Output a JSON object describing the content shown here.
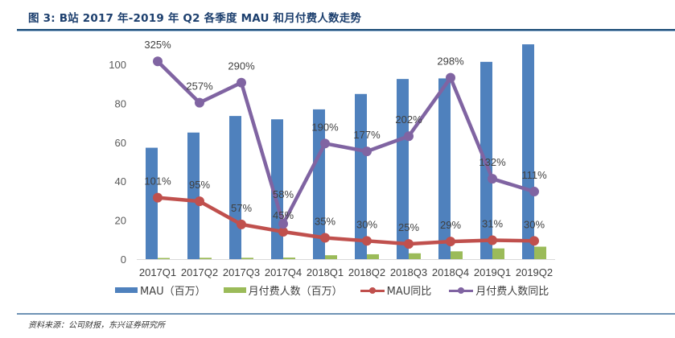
{
  "figure": {
    "title": "图 3: B站 2017 年-2019 年 Q2 各季度 MAU 和月付费人数走势",
    "source": "资料来源：公司财报，东兴证券研究所"
  },
  "colors": {
    "mau": "#4f81bd",
    "paying": "#9bbb59",
    "mau_yoy": "#c0504d",
    "paying_yoy": "#8064a2",
    "axis": "#d9d9d9",
    "rule": "#1f4e79"
  },
  "legend": [
    {
      "label": "MAU（百万）",
      "kind": "bar",
      "color_key": "mau"
    },
    {
      "label": "月付费人数（百万）",
      "kind": "bar",
      "color_key": "paying"
    },
    {
      "label": "MAU同比",
      "kind": "line",
      "color_key": "mau_yoy"
    },
    {
      "label": "月付费人数同比",
      "kind": "line",
      "color_key": "paying_yoy"
    }
  ],
  "chart_data": {
    "type": "bar",
    "title": "B站 2017 年-2019 年 Q2 各季度 MAU 和月付费人数走势",
    "xlabel": "",
    "ylabel": "",
    "ylim": [
      0,
      110
    ],
    "yticks": [
      0,
      20,
      40,
      60,
      80,
      100
    ],
    "grid": false,
    "legend_position": "bottom",
    "categories": [
      "2017Q1",
      "2017Q2",
      "2017Q3",
      "2017Q4",
      "2018Q1",
      "2018Q2",
      "2018Q3",
      "2018Q4",
      "2019Q1",
      "2019Q2"
    ],
    "series": [
      {
        "name": "MAU（百万）",
        "type": "bar",
        "values": [
          57.2,
          65.0,
          73.5,
          71.8,
          76.9,
          84.8,
          92.5,
          92.8,
          101.3,
          110.3
        ]
      },
      {
        "name": "月付费人数（百万）",
        "type": "bar",
        "values": [
          0.6,
          0.7,
          0.7,
          0.8,
          2.0,
          2.5,
          3.0,
          4.0,
          5.5,
          6.4
        ]
      },
      {
        "name": "MAU同比",
        "type": "line",
        "values": [
          101,
          95,
          57,
          45,
          35,
          30,
          25,
          29,
          31,
          30
        ],
        "labels": [
          "101%",
          "95%",
          "57%",
          "45%",
          "35%",
          "30%",
          "25%",
          "29%",
          "31%",
          "30%"
        ]
      },
      {
        "name": "月付费人数同比",
        "type": "line",
        "values": [
          325,
          257,
          290,
          58,
          190,
          177,
          202,
          298,
          132,
          111
        ],
        "labels": [
          "325%",
          "257%",
          "290%",
          "58%",
          "190%",
          "177%",
          "202%",
          "298%",
          "132%",
          "111%"
        ]
      }
    ],
    "line_scale_note": "YoY % lines plotted at value/3.2 on the left axis scale"
  }
}
